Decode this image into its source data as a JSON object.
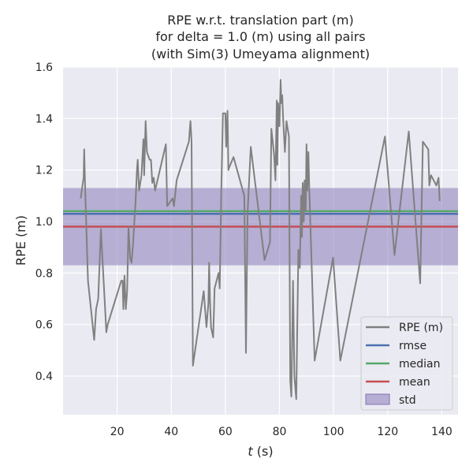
{
  "chart_data": {
    "type": "line",
    "title": [
      "RPE w.r.t. translation part (m)",
      "for delta = 1.0 (m) using all pairs",
      "(with Sim(3) Umeyama alignment)"
    ],
    "xlabel_italic": "t",
    "xlabel_rest": " (s)",
    "ylabel": "RPE (m)",
    "xlim": [
      0,
      146
    ],
    "ylim": [
      0.25,
      1.6
    ],
    "xticks": [
      20,
      40,
      60,
      80,
      100,
      120,
      140
    ],
    "yticks": [
      0.4,
      0.6,
      0.8,
      1.0,
      1.2,
      1.4,
      1.6
    ],
    "grid": true,
    "legend_position": "lower-right",
    "colors": {
      "background": "#eaeaf2",
      "grid": "#ffffff",
      "rpe": "#808080",
      "rmse": "#4c72b0",
      "median": "#55a868",
      "mean": "#c44e52",
      "std": "#8172b3"
    },
    "stats": {
      "rmse": 1.03,
      "median": 1.04,
      "mean": 0.98,
      "std_low": 0.83,
      "std_high": 1.13
    },
    "legend": [
      {
        "key": "rpe",
        "label": "RPE (m)",
        "kind": "line"
      },
      {
        "key": "rmse",
        "label": "rmse",
        "kind": "line"
      },
      {
        "key": "median",
        "label": "median",
        "kind": "line"
      },
      {
        "key": "mean",
        "label": "mean",
        "kind": "line"
      },
      {
        "key": "std",
        "label": "std",
        "kind": "patch"
      }
    ],
    "series": [
      {
        "name": "RPE (m)",
        "x": [
          6.5,
          7.6,
          7.8,
          8.2,
          9.2,
          11.5,
          12.2,
          13.0,
          14.0,
          16.0,
          16.5,
          21.5,
          22.0,
          22.3,
          22.7,
          23.2,
          23.7,
          24.2,
          24.8,
          25.3,
          25.8,
          26.8,
          27.3,
          27.6,
          28.1,
          29.0,
          29.7,
          30.0,
          30.5,
          31.0,
          32.0,
          32.5,
          33.0,
          33.5,
          34.0,
          38.0,
          38.5,
          40.5,
          41.0,
          42.0,
          46.5,
          47.1,
          47.5,
          48.0,
          52.0,
          53.0,
          53.7,
          54.0,
          54.3,
          54.7,
          55.5,
          56.0,
          57.5,
          57.9,
          58.5,
          59.1,
          60.0,
          60.3,
          60.8,
          61.1,
          61.4,
          63.0,
          67.0,
          67.6,
          68.2,
          69.4,
          74.5,
          76.5,
          77.0,
          78.0,
          78.5,
          79.0,
          79.2,
          79.5,
          80.0,
          80.4,
          80.7,
          81.0,
          81.3,
          82.0,
          82.6,
          83.5,
          84.0,
          84.4,
          85.0,
          85.5,
          86.2,
          87.0,
          87.5,
          88.0,
          88.3,
          88.6,
          89.0,
          89.3,
          89.7,
          90.0,
          90.3,
          90.7,
          91.0,
          93.0,
          99.8,
          102.5,
          119.0,
          122.5,
          127.8,
          132.0,
          133.0,
          135.0,
          135.4,
          136.0,
          138.0,
          138.8,
          139.2
        ],
        "y": [
          1.09,
          1.17,
          1.28,
          1.12,
          0.77,
          0.54,
          0.66,
          0.7,
          0.97,
          0.57,
          0.6,
          0.77,
          0.77,
          0.66,
          0.79,
          0.66,
          0.73,
          0.98,
          0.86,
          0.84,
          0.9,
          1.08,
          1.2,
          1.24,
          1.12,
          1.18,
          1.32,
          1.18,
          1.39,
          1.27,
          1.24,
          1.24,
          1.15,
          1.17,
          1.12,
          1.3,
          1.06,
          1.09,
          1.06,
          1.16,
          1.31,
          1.39,
          1.31,
          0.44,
          0.73,
          0.59,
          0.68,
          0.84,
          0.7,
          0.59,
          0.55,
          0.74,
          0.8,
          0.74,
          1.12,
          1.42,
          1.42,
          1.29,
          1.43,
          1.2,
          1.21,
          1.25,
          1.1,
          0.49,
          1.03,
          1.29,
          0.85,
          0.92,
          1.36,
          1.26,
          1.16,
          1.47,
          1.22,
          1.46,
          1.37,
          1.55,
          1.46,
          1.49,
          1.41,
          1.27,
          1.39,
          1.33,
          0.38,
          0.32,
          0.77,
          0.4,
          0.31,
          0.89,
          0.82,
          1.1,
          0.94,
          1.15,
          1.0,
          1.16,
          1.04,
          1.3,
          1.12,
          1.27,
          1.13,
          0.46,
          0.86,
          0.46,
          1.33,
          0.87,
          1.35,
          0.76,
          1.31,
          1.28,
          1.14,
          1.18,
          1.14,
          1.17,
          1.08
        ]
      }
    ]
  }
}
